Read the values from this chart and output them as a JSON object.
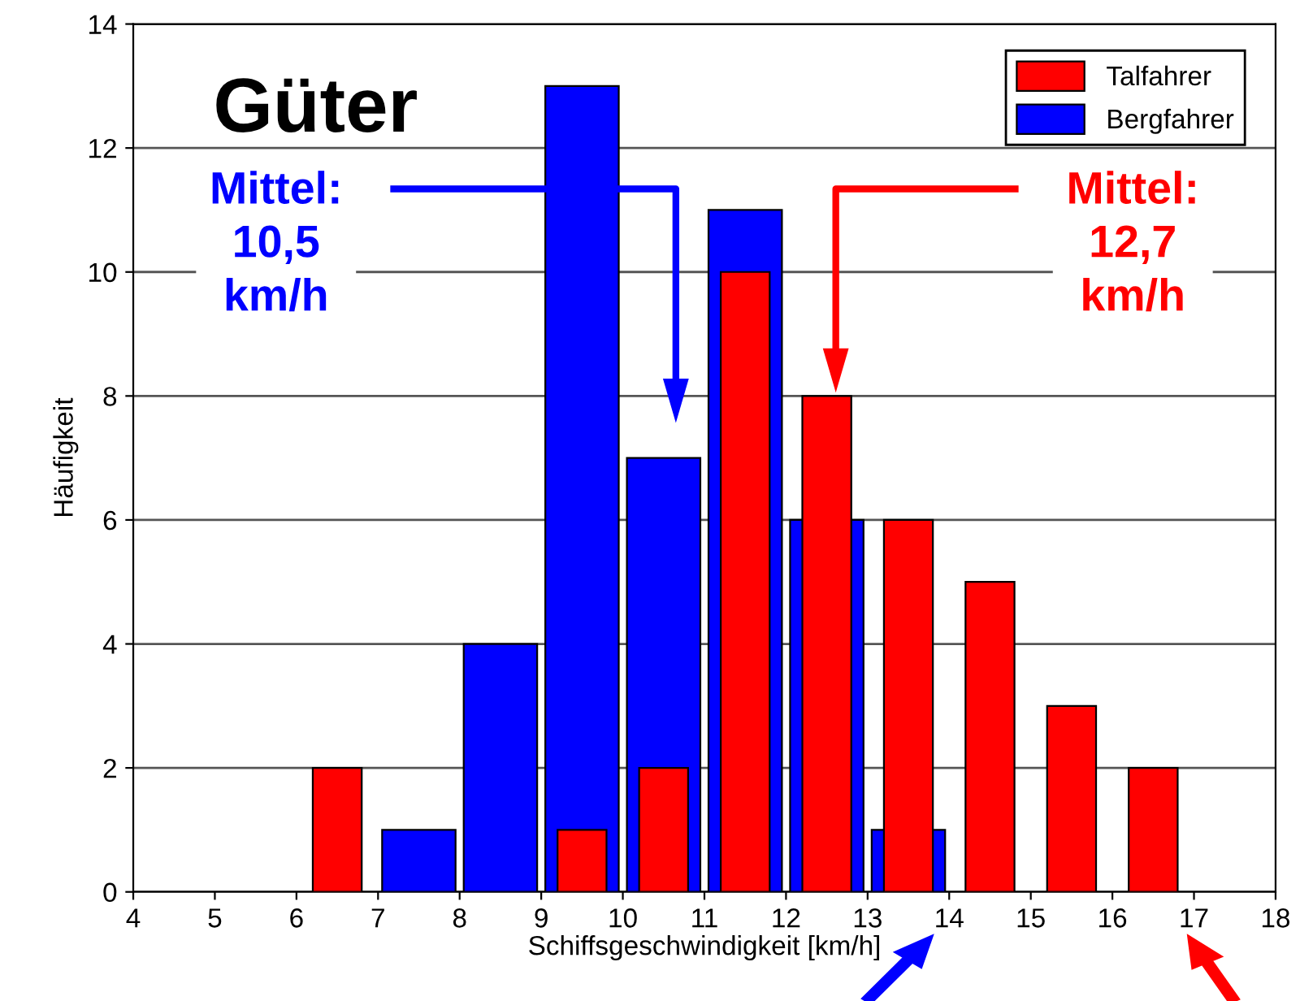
{
  "chart_data": {
    "type": "bar",
    "title": "Güter",
    "xlabel": "Schiffsgeschwindigkeit [km/h]",
    "ylabel": "Häufigkeit",
    "series": [
      {
        "name": "Talfahrer",
        "color": "#ff0000",
        "x": [
          6.5,
          9.5,
          10.5,
          11.5,
          12.5,
          13.5,
          14.5,
          15.5,
          16.5
        ],
        "values": [
          2,
          1,
          2,
          10,
          8,
          6,
          5,
          3,
          2
        ]
      },
      {
        "name": "Bergfahrer",
        "color": "#0000ff",
        "x": [
          7.5,
          8.5,
          9.5,
          10.5,
          11.5,
          12.5,
          13.5
        ],
        "values": [
          1,
          4,
          13,
          7,
          11,
          6,
          1
        ]
      }
    ],
    "annotations": [
      "Mittel:\n10,5\nkm/h",
      "Mittel:\n12,7\nkm/h"
    ],
    "xlim": [
      4,
      18
    ],
    "xticks": [
      4,
      5,
      6,
      7,
      8,
      9,
      10,
      11,
      12,
      13,
      14,
      15,
      16,
      17,
      18
    ],
    "ylim": [
      0,
      14
    ],
    "yticks": [
      0,
      2,
      4,
      6,
      8,
      10,
      12,
      14
    ],
    "grid": "y",
    "legend": "top right"
  }
}
